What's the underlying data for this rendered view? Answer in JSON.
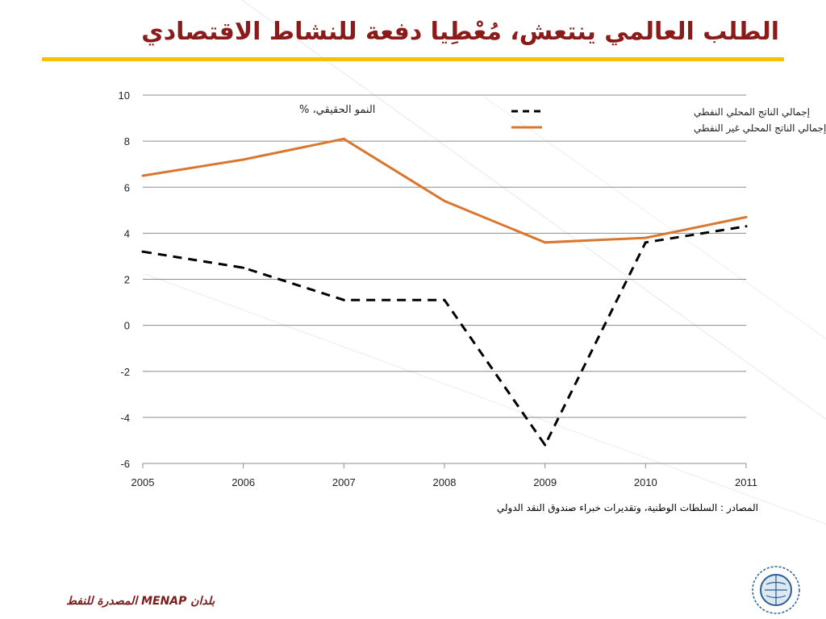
{
  "slide": {
    "title": "الطلب العالمي ينتعش، مُعْطِيا دفعة للنشاط الاقتصادي",
    "source": "المصادر : السلطات الوطنية، وتقديرات خبراء صندوق النقد الدولي",
    "footer": "بلدان MENAP المصدرة للنفط",
    "accent_color": "#f5c200",
    "title_color": "#8b1a1a"
  },
  "logo": {
    "icon": "imf-seal-icon"
  },
  "chart_data": {
    "type": "line",
    "ylabel": "النمو الحقيقي، %",
    "x": [
      "2005",
      "2006",
      "2007",
      "2008",
      "2009",
      "2010",
      "2011"
    ],
    "ylim": [
      -6,
      10
    ],
    "yticks": [
      10,
      8,
      6,
      4,
      2,
      0,
      -2,
      -4,
      -6
    ],
    "grid": true,
    "legend_position": "top-right",
    "series": [
      {
        "name": "إجمالي الناتج المحلي النفطي",
        "values": [
          3.2,
          2.5,
          1.1,
          1.1,
          -5.2,
          3.6,
          4.3
        ],
        "color": "#000000",
        "style": "dashed"
      },
      {
        "name": "إجمالي الناتج المحلي غير النفطي",
        "values": [
          6.5,
          7.2,
          8.1,
          5.4,
          3.6,
          3.8,
          4.7
        ],
        "color": "#d9772f",
        "style": "solid"
      }
    ]
  }
}
